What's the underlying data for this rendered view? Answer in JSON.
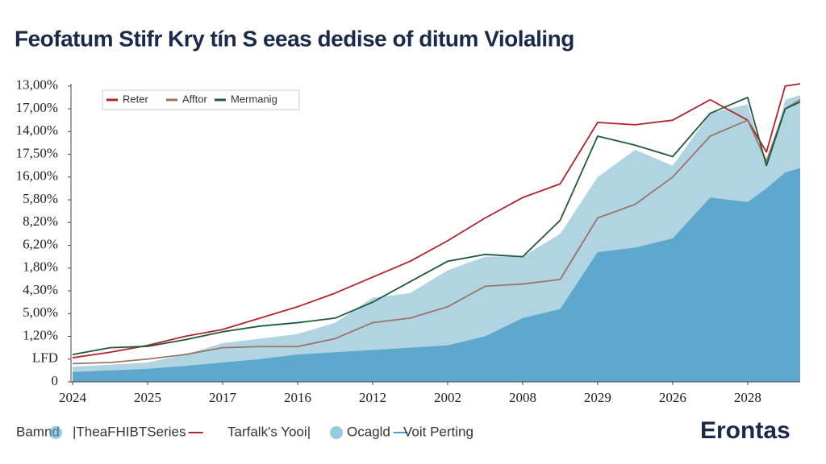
{
  "chart_data": {
    "type": "line",
    "title": "Feofatum Stifr Kry tín S eeas dedise of ditum Violaling",
    "brand": "Erontas",
    "x": [
      0,
      0.5,
      1,
      1.5,
      2,
      2.5,
      3,
      3.5,
      4,
      4.5,
      5,
      5.5,
      6,
      6.5,
      7,
      7.5,
      8,
      8.5,
      9,
      9.25,
      9.5,
      9.7
    ],
    "xlim": [
      0,
      9.7
    ],
    "xticks": [
      {
        "value": 0,
        "label": "2024"
      },
      {
        "value": 1,
        "label": "2025"
      },
      {
        "value": 2,
        "label": "2017"
      },
      {
        "value": 3,
        "label": "2016"
      },
      {
        "value": 4,
        "label": "2012"
      },
      {
        "value": 5,
        "label": "2002"
      },
      {
        "value": 6,
        "label": "2008"
      },
      {
        "value": 7,
        "label": "2029"
      },
      {
        "value": 8,
        "label": "2026"
      },
      {
        "value": 9,
        "label": "2028"
      }
    ],
    "ylim": [
      0,
      13.1
    ],
    "yticks": [
      {
        "value": 13,
        "label": "13,00%"
      },
      {
        "value": 12,
        "label": "17,00%"
      },
      {
        "value": 11,
        "label": "14,00%"
      },
      {
        "value": 10,
        "label": "17,50%"
      },
      {
        "value": 9,
        "label": "16,00%"
      },
      {
        "value": 8,
        "label": "5,80%"
      },
      {
        "value": 7,
        "label": "8,20%"
      },
      {
        "value": 6,
        "label": "6,20%"
      },
      {
        "value": 5,
        "label": "1,80%"
      },
      {
        "value": 4,
        "label": "4,30%"
      },
      {
        "value": 3,
        "label": "5,00%"
      },
      {
        "value": 2,
        "label": "1,20%"
      },
      {
        "value": 1,
        "label": "LFD"
      },
      0
    ],
    "areas": [
      {
        "color": "#a9cfdf",
        "values": [
          0.67,
          0.75,
          0.85,
          1.2,
          1.7,
          1.9,
          2.1,
          2.6,
          3.7,
          3.9,
          4.9,
          5.5,
          5.5,
          6.5,
          9.0,
          10.2,
          9.5,
          11.8,
          12.2,
          9.4,
          12.4,
          12.6
        ]
      },
      {
        "color": "#5aa5cb",
        "values": [
          0.43,
          0.5,
          0.57,
          0.7,
          0.85,
          1.0,
          1.2,
          1.3,
          1.4,
          1.5,
          1.6,
          2.0,
          2.8,
          3.2,
          5.7,
          5.9,
          6.3,
          8.1,
          7.9,
          8.5,
          9.2,
          9.4
        ]
      }
    ],
    "series": [
      {
        "name": "Reter",
        "color": "#b4232c",
        "values": [
          1.06,
          1.3,
          1.6,
          2.0,
          2.3,
          2.8,
          3.3,
          3.9,
          4.6,
          5.3,
          6.2,
          7.2,
          8.1,
          8.7,
          11.4,
          11.3,
          11.5,
          12.4,
          11.5,
          10.1,
          13.0,
          13.1
        ]
      },
      {
        "name": "Afftor",
        "color": "#9a7466",
        "values": [
          0.8,
          0.85,
          1.0,
          1.2,
          1.5,
          1.55,
          1.55,
          1.9,
          2.6,
          2.8,
          3.3,
          4.2,
          4.3,
          4.5,
          7.2,
          7.8,
          9.0,
          10.8,
          11.5,
          9.7,
          12.0,
          12.4
        ]
      },
      {
        "name": "Mermanig",
        "color": "#1f5a3a",
        "values": [
          1.2,
          1.5,
          1.56,
          1.85,
          2.2,
          2.45,
          2.6,
          2.8,
          3.5,
          4.4,
          5.3,
          5.6,
          5.5,
          7.1,
          10.8,
          10.4,
          9.9,
          11.8,
          12.5,
          9.5,
          12.0,
          12.3
        ]
      }
    ],
    "legend": "top-left",
    "footer_legend": [
      {
        "label": "Bamnd",
        "icon": "circle",
        "color": "#5aa5cb"
      },
      {
        "label": "|TheaFHIBTSeries",
        "icon": "line",
        "color": "#b4232c"
      },
      {
        "label": "Tarfalk's Yooi|",
        "icon": "circle",
        "color": "#5aa5cb"
      },
      {
        "label": "Ocagld",
        "icon": "line",
        "color": "#4f9cc6"
      },
      {
        "label": "Voit Perting",
        "icon": "none",
        "color": "#4f9cc6"
      }
    ]
  }
}
